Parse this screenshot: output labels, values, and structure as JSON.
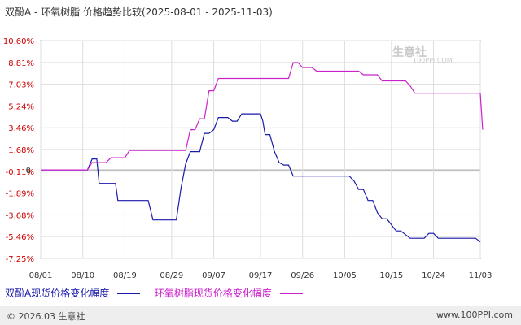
{
  "header": {
    "title": "双酚A - 环氧树脂 价格趋势比较(2025-08-01 - 2025-11-03)"
  },
  "colors": {
    "series_a": "#1a1aaa",
    "series_b": "#cc22cc",
    "grid": "#dddddd",
    "axis": "#666666",
    "tick_text": "#cc0000"
  },
  "watermark": {
    "text": "生意社",
    "sub": "100PPI.COM"
  },
  "footer": {
    "left": "© 2026.03 生意社",
    "right": "www.100PPI.com"
  },
  "chart_data": {
    "type": "line",
    "title": "双酚A - 环氧树脂 价格趋势比较(2025-08-01 - 2025-11-03)",
    "ylim": [
      -7.25,
      10.6
    ],
    "y_ticks": [
      "10.60%",
      "8.81%",
      "7.03%",
      "5.24%",
      "3.46%",
      "1.68%",
      "-0.11%",
      "-1.89%",
      "-3.68%",
      "-5.46%",
      "-7.25%"
    ],
    "y_tick_values": [
      10.6,
      8.81,
      7.03,
      5.24,
      3.46,
      1.68,
      -0.11,
      -1.89,
      -3.68,
      -5.46,
      -7.25
    ],
    "zero_label": "0",
    "x_tick_labels": [
      "08/01",
      "08/10",
      "08/19",
      "08/29",
      "09/07",
      "09/17",
      "09/26",
      "10/05",
      "10/15",
      "10/24",
      "11/03"
    ],
    "x_tick_days": [
      0,
      9,
      18,
      28,
      37,
      47,
      56,
      65,
      75,
      84,
      94
    ],
    "x_days_total": 94,
    "grid": true,
    "legend_position": "bottom-left",
    "series": [
      {
        "name": "双酚A现货价格变化幅度",
        "color": "#1a1aaa",
        "points": [
          [
            0,
            0
          ],
          [
            10,
            0
          ],
          [
            11,
            0.9
          ],
          [
            12,
            0.9
          ],
          [
            12.5,
            -1.1
          ],
          [
            14,
            -1.1
          ],
          [
            16,
            -1.1
          ],
          [
            16.5,
            -2.5
          ],
          [
            18,
            -2.5
          ],
          [
            22,
            -2.5
          ],
          [
            23,
            -2.5
          ],
          [
            24,
            -4.1
          ],
          [
            27,
            -4.1
          ],
          [
            29,
            -4.1
          ],
          [
            30,
            -1.5
          ],
          [
            31,
            0.5
          ],
          [
            32,
            1.5
          ],
          [
            34,
            1.5
          ],
          [
            35,
            3.0
          ],
          [
            36,
            3.0
          ],
          [
            37,
            3.3
          ],
          [
            38,
            4.3
          ],
          [
            40,
            4.3
          ],
          [
            41,
            4.0
          ],
          [
            42,
            4.0
          ],
          [
            43,
            4.6
          ],
          [
            47,
            4.6
          ],
          [
            47.5,
            4.0
          ],
          [
            48,
            2.9
          ],
          [
            49,
            2.9
          ],
          [
            50,
            1.5
          ],
          [
            51,
            0.6
          ],
          [
            52,
            0.4
          ],
          [
            53,
            0.4
          ],
          [
            54,
            -0.5
          ],
          [
            64,
            -0.5
          ],
          [
            65,
            -0.5
          ],
          [
            66,
            -0.5
          ],
          [
            67,
            -0.9
          ],
          [
            68,
            -1.6
          ],
          [
            69,
            -1.6
          ],
          [
            70,
            -2.5
          ],
          [
            71,
            -2.5
          ],
          [
            72,
            -3.5
          ],
          [
            73,
            -4.0
          ],
          [
            74,
            -4.0
          ],
          [
            75,
            -4.5
          ],
          [
            76,
            -5.0
          ],
          [
            77,
            -5.0
          ],
          [
            78,
            -5.3
          ],
          [
            79,
            -5.6
          ],
          [
            80,
            -5.6
          ],
          [
            81,
            -5.6
          ],
          [
            82,
            -5.6
          ],
          [
            83,
            -5.2
          ],
          [
            84,
            -5.2
          ],
          [
            85,
            -5.6
          ],
          [
            93,
            -5.6
          ],
          [
            94,
            -5.9
          ]
        ]
      },
      {
        "name": "环氧树脂现货价格变化幅度",
        "color": "#cc22cc",
        "points": [
          [
            0,
            0
          ],
          [
            10,
            0
          ],
          [
            11,
            0.6
          ],
          [
            12,
            0.6
          ],
          [
            14,
            0.6
          ],
          [
            15,
            1.0
          ],
          [
            18,
            1.0
          ],
          [
            19,
            1.6
          ],
          [
            31,
            1.6
          ],
          [
            32,
            3.3
          ],
          [
            33,
            3.3
          ],
          [
            34,
            4.2
          ],
          [
            35,
            4.2
          ],
          [
            36,
            6.5
          ],
          [
            37,
            6.5
          ],
          [
            38,
            7.5
          ],
          [
            53,
            7.5
          ],
          [
            54,
            8.8
          ],
          [
            55,
            8.8
          ],
          [
            56,
            8.4
          ],
          [
            58,
            8.4
          ],
          [
            59,
            8.1
          ],
          [
            68,
            8.1
          ],
          [
            69,
            7.8
          ],
          [
            72,
            7.8
          ],
          [
            73,
            7.3
          ],
          [
            78,
            7.3
          ],
          [
            79,
            6.9
          ],
          [
            80,
            6.3
          ],
          [
            81,
            6.3
          ],
          [
            94,
            6.3
          ],
          [
            94.5,
            3.3
          ]
        ]
      }
    ]
  }
}
